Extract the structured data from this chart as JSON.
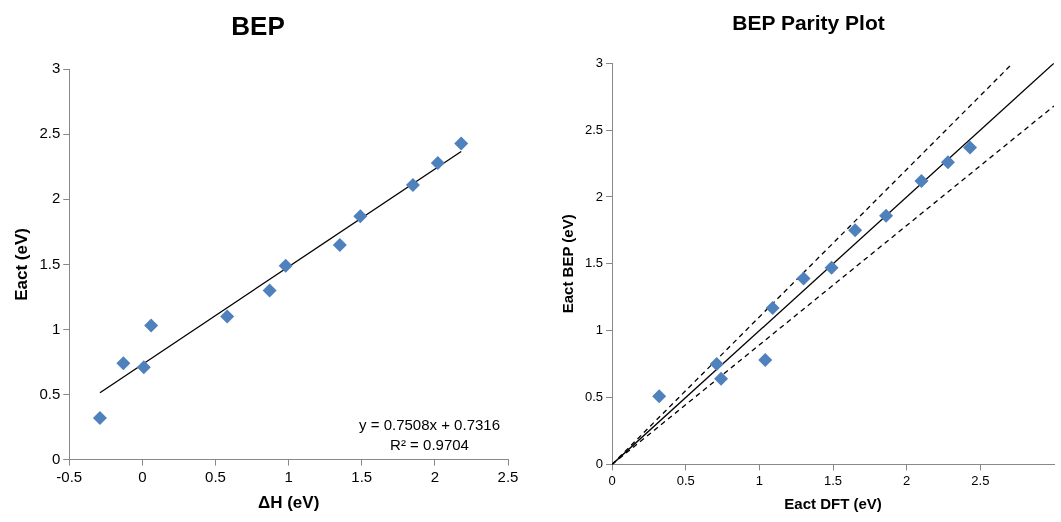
{
  "chart_data": [
    {
      "type": "scatter",
      "title": "BEP",
      "xlabel": "ΔH (eV)",
      "ylabel": "Eact (eV)",
      "xlim": [
        -0.5,
        2.5
      ],
      "ylim": [
        0,
        3
      ],
      "xticks": [
        -0.5,
        0,
        0.5,
        1,
        1.5,
        2,
        2.5
      ],
      "yticks": [
        0,
        0.5,
        1,
        1.5,
        2,
        2.5,
        3
      ],
      "grid": false,
      "marker": "diamond",
      "annotations": [
        "y = 0.7508x + 0.7316",
        "R² = 0.9704"
      ],
      "series": [
        {
          "color": "#4f81bd",
          "x": [
            -0.29,
            -0.13,
            0.01,
            0.06,
            0.58,
            0.87,
            0.98,
            1.35,
            1.49,
            1.85,
            2.02,
            2.18
          ],
          "values": [
            0.32,
            0.74,
            0.71,
            1.03,
            1.1,
            1.3,
            1.49,
            1.65,
            1.87,
            2.11,
            2.28,
            2.43
          ]
        },
        {
          "type": "line",
          "color": "#000000",
          "marker": "none",
          "line_style": "solid",
          "x": [
            -0.29,
            2.18
          ],
          "values": [
            0.514,
            2.368
          ]
        }
      ]
    },
    {
      "type": "scatter",
      "title": "BEP Parity Plot",
      "xlabel": "Eact DFT (eV)",
      "ylabel": "Eact BEP (eV)",
      "xlim": [
        0,
        3
      ],
      "ylim": [
        0,
        3
      ],
      "xticks": [
        0,
        0.5,
        1,
        1.5,
        2,
        2.5
      ],
      "yticks": [
        0,
        0.5,
        1,
        1.5,
        2,
        2.5,
        3
      ],
      "grid": false,
      "marker": "diamond",
      "series": [
        {
          "color": "#4f81bd",
          "x": [
            0.32,
            0.71,
            0.74,
            1.04,
            1.09,
            1.3,
            1.49,
            1.65,
            1.86,
            2.1,
            2.28,
            2.43
          ],
          "values": [
            0.51,
            0.75,
            0.64,
            0.78,
            1.17,
            1.39,
            1.47,
            1.75,
            1.86,
            2.12,
            2.26,
            2.37
          ]
        },
        {
          "type": "line",
          "color": "#000000",
          "marker": "none",
          "line_style": "solid",
          "x": [
            0,
            3
          ],
          "values": [
            0,
            3
          ]
        },
        {
          "type": "line",
          "color": "#000000",
          "marker": "none",
          "line_style": "dashed",
          "x": [
            0,
            2.72
          ],
          "values": [
            0,
            3
          ]
        },
        {
          "type": "line",
          "color": "#000000",
          "marker": "none",
          "line_style": "dashed",
          "x": [
            0,
            3
          ],
          "values": [
            0,
            2.68
          ]
        }
      ]
    }
  ]
}
